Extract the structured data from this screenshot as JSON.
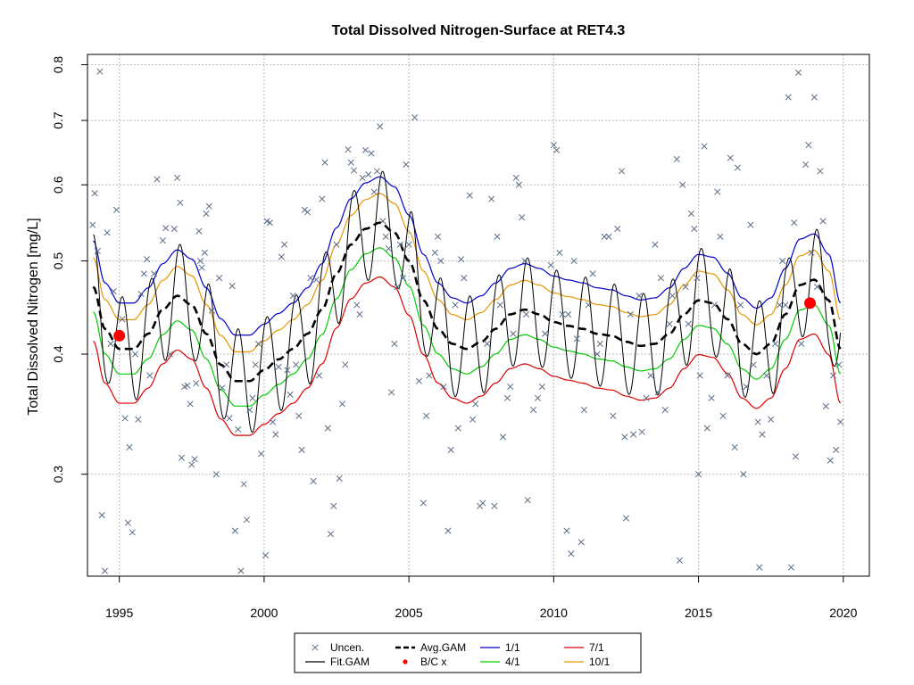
{
  "chart_data": {
    "type": "scatter",
    "title": "Total Dissolved Nitrogen-Surface at RET4.3",
    "xlabel": "",
    "ylabel": "Total Dissolved Nitrogen [mg/L]",
    "xlim": [
      1993.9,
      2020.9
    ],
    "ylim": [
      0.235,
      0.82
    ],
    "y_scale": "log",
    "grid": true,
    "legend_position": "bottom",
    "x_ticks": [
      1995,
      2000,
      2005,
      2010,
      2015,
      2020
    ],
    "y_ticks": [
      0.3,
      0.4,
      0.5,
      0.6,
      0.7,
      0.8
    ],
    "legend": [
      {
        "label": "Uncen.",
        "symbol": "x",
        "color": "#5a6e87"
      },
      {
        "label": "Avg.GAM",
        "symbol": "dashed-line",
        "color": "#000000"
      },
      {
        "label": "1/1",
        "symbol": "line",
        "color": "#0000cc"
      },
      {
        "label": "7/1",
        "symbol": "line",
        "color": "#dd0000"
      },
      {
        "label": "Fit.GAM",
        "symbol": "line",
        "color": "#000000"
      },
      {
        "label": "B/C x",
        "symbol": "point",
        "color": "#ff0000"
      },
      {
        "label": "4/1",
        "symbol": "line",
        "color": "#00cc00"
      },
      {
        "label": "10/1",
        "symbol": "line",
        "color": "#e69500"
      }
    ],
    "bc_points": [
      [
        1995.0,
        0.418
      ],
      [
        2018.85,
        0.452
      ]
    ],
    "avg_gam": {
      "x": [
        1994.1,
        1994.5,
        1995.0,
        1995.5,
        1996.0,
        1996.5,
        1997.0,
        1997.5,
        1998.0,
        1998.5,
        1999.0,
        1999.5,
        2000.0,
        2000.5,
        2001.0,
        2001.5,
        2002.0,
        2002.5,
        2003.0,
        2003.5,
        2004.0,
        2004.5,
        2005.0,
        2005.5,
        2006.0,
        2006.5,
        2007.0,
        2007.5,
        2008.0,
        2008.5,
        2009.0,
        2009.5,
        2010.0,
        2010.5,
        2011.0,
        2011.5,
        2012.0,
        2012.5,
        2013.0,
        2013.5,
        2014.0,
        2014.5,
        2015.0,
        2015.5,
        2016.0,
        2016.5,
        2017.0,
        2017.5,
        2018.0,
        2018.5,
        2019.0,
        2019.5,
        2019.9
      ],
      "y": [
        0.47,
        0.425,
        0.405,
        0.405,
        0.42,
        0.445,
        0.46,
        0.45,
        0.42,
        0.39,
        0.375,
        0.375,
        0.385,
        0.395,
        0.405,
        0.42,
        0.445,
        0.485,
        0.52,
        0.54,
        0.548,
        0.535,
        0.5,
        0.455,
        0.425,
        0.41,
        0.405,
        0.412,
        0.425,
        0.44,
        0.445,
        0.44,
        0.432,
        0.428,
        0.425,
        0.42,
        0.418,
        0.412,
        0.408,
        0.41,
        0.42,
        0.44,
        0.455,
        0.452,
        0.435,
        0.41,
        0.4,
        0.41,
        0.44,
        0.472,
        0.478,
        0.455,
        0.405
      ]
    },
    "seasonal_series": [
      {
        "name": "1/1",
        "color": "#0000cc",
        "offset": 0.11
      },
      {
        "name": "10/1",
        "color": "#e69500",
        "offset": 0.07
      },
      {
        "name": "4/1",
        "color": "#00cc00",
        "offset": -0.06
      },
      {
        "name": "7/1",
        "color": "#dd0000",
        "offset": -0.13
      }
    ],
    "fit_gam": {
      "color": "#000000",
      "amplitude": 0.125,
      "period_years": 1
    },
    "uncensored_points": [
      [
        1994.08,
        0.545
      ],
      [
        1994.15,
        0.588
      ],
      [
        1994.25,
        0.512
      ],
      [
        1994.33,
        0.787
      ],
      [
        1994.4,
        0.272
      ],
      [
        1994.5,
        0.238
      ],
      [
        1994.58,
        0.535
      ],
      [
        1994.7,
        0.41
      ],
      [
        1994.8,
        0.465
      ],
      [
        1994.9,
        0.565
      ],
      [
        1995.1,
        0.435
      ],
      [
        1995.2,
        0.343
      ],
      [
        1995.3,
        0.267
      ],
      [
        1995.35,
        0.32
      ],
      [
        1995.45,
        0.261
      ],
      [
        1995.55,
        0.4
      ],
      [
        1995.65,
        0.342
      ],
      [
        1995.75,
        0.462
      ],
      [
        1995.85,
        0.485
      ],
      [
        1995.95,
        0.502
      ],
      [
        1996.05,
        0.38
      ],
      [
        1996.2,
        0.485
      ],
      [
        1996.3,
        0.608
      ],
      [
        1996.5,
        0.525
      ],
      [
        1996.6,
        0.541
      ],
      [
        1996.75,
        0.4
      ],
      [
        1996.9,
        0.54
      ],
      [
        1997.0,
        0.61
      ],
      [
        1997.1,
        0.575
      ],
      [
        1997.15,
        0.312
      ],
      [
        1997.25,
        0.37
      ],
      [
        1997.35,
        0.371
      ],
      [
        1997.45,
        0.355
      ],
      [
        1997.5,
        0.307
      ],
      [
        1997.6,
        0.311
      ],
      [
        1997.65,
        0.373
      ],
      [
        1997.75,
        0.537
      ],
      [
        1997.8,
        0.5
      ],
      [
        1997.85,
        0.492
      ],
      [
        1997.95,
        0.51
      ],
      [
        1998.0,
        0.56
      ],
      [
        1998.1,
        0.57
      ],
      [
        1998.2,
        0.444
      ],
      [
        1998.35,
        0.3
      ],
      [
        1998.45,
        0.48
      ],
      [
        1998.55,
        0.369
      ],
      [
        1998.7,
        0.39
      ],
      [
        1998.8,
        0.343
      ],
      [
        1998.9,
        0.471
      ],
      [
        1999.0,
        0.262
      ],
      [
        1999.1,
        0.334
      ],
      [
        1999.2,
        0.238
      ],
      [
        1999.3,
        0.293
      ],
      [
        1999.4,
        0.269
      ],
      [
        1999.5,
        0.35
      ],
      [
        1999.6,
        0.36
      ],
      [
        1999.7,
        0.39
      ],
      [
        1999.8,
        0.41
      ],
      [
        1999.9,
        0.315
      ],
      [
        2000.05,
        0.247
      ],
      [
        2000.1,
        0.55
      ],
      [
        2000.2,
        0.548
      ],
      [
        2000.3,
        0.34
      ],
      [
        2000.4,
        0.33
      ],
      [
        2000.5,
        0.388
      ],
      [
        2000.6,
        0.505
      ],
      [
        2000.7,
        0.52
      ],
      [
        2000.8,
        0.385
      ],
      [
        2000.9,
        0.363
      ],
      [
        2001.0,
        0.46
      ],
      [
        2001.1,
        0.39
      ],
      [
        2001.2,
        0.345
      ],
      [
        2001.3,
        0.318
      ],
      [
        2001.4,
        0.565
      ],
      [
        2001.5,
        0.562
      ],
      [
        2001.6,
        0.48
      ],
      [
        2001.7,
        0.295
      ],
      [
        2001.8,
        0.478
      ],
      [
        2001.9,
        0.38
      ],
      [
        2002.0,
        0.58
      ],
      [
        2002.1,
        0.633
      ],
      [
        2002.2,
        0.335
      ],
      [
        2002.3,
        0.26
      ],
      [
        2002.4,
        0.278
      ],
      [
        2002.5,
        0.52
      ],
      [
        2002.6,
        0.297
      ],
      [
        2002.7,
        0.355
      ],
      [
        2002.8,
        0.39
      ],
      [
        2002.9,
        0.653
      ],
      [
        2003.0,
        0.633
      ],
      [
        2003.1,
        0.621
      ],
      [
        2003.2,
        0.45
      ],
      [
        2003.3,
        0.44
      ],
      [
        2003.4,
        0.61
      ],
      [
        2003.5,
        0.652
      ],
      [
        2003.6,
        0.615
      ],
      [
        2003.7,
        0.647
      ],
      [
        2003.8,
        0.59
      ],
      [
        2003.9,
        0.62
      ],
      [
        2004.0,
        0.69
      ],
      [
        2004.1,
        0.55
      ],
      [
        2004.2,
        0.53
      ],
      [
        2004.3,
        0.515
      ],
      [
        2004.4,
        0.365
      ],
      [
        2004.5,
        0.41
      ],
      [
        2004.6,
        0.47
      ],
      [
        2004.7,
        0.52
      ],
      [
        2004.8,
        0.48
      ],
      [
        2004.9,
        0.63
      ],
      [
        2005.0,
        0.52
      ],
      [
        2005.2,
        0.705
      ],
      [
        2005.35,
        0.375
      ],
      [
        2005.5,
        0.28
      ],
      [
        2005.6,
        0.345
      ],
      [
        2005.7,
        0.38
      ],
      [
        2005.9,
        0.51
      ],
      [
        2006.0,
        0.53
      ],
      [
        2006.1,
        0.5
      ],
      [
        2006.2,
        0.37
      ],
      [
        2006.35,
        0.262
      ],
      [
        2006.45,
        0.318
      ],
      [
        2006.6,
        0.45
      ],
      [
        2006.7,
        0.335
      ],
      [
        2006.8,
        0.502
      ],
      [
        2006.9,
        0.48
      ],
      [
        2007.1,
        0.585
      ],
      [
        2007.2,
        0.342
      ],
      [
        2007.3,
        0.355
      ],
      [
        2007.45,
        0.278
      ],
      [
        2007.55,
        0.28
      ],
      [
        2007.7,
        0.41
      ],
      [
        2007.85,
        0.58
      ],
      [
        2007.95,
        0.278
      ],
      [
        2008.05,
        0.53
      ],
      [
        2008.15,
        0.45
      ],
      [
        2008.25,
        0.328
      ],
      [
        2008.4,
        0.36
      ],
      [
        2008.5,
        0.37
      ],
      [
        2008.6,
        0.42
      ],
      [
        2008.7,
        0.61
      ],
      [
        2008.8,
        0.6
      ],
      [
        2008.9,
        0.555
      ],
      [
        2009.0,
        0.5
      ],
      [
        2009.05,
        0.44
      ],
      [
        2009.1,
        0.282
      ],
      [
        2009.3,
        0.35
      ],
      [
        2009.45,
        0.36
      ],
      [
        2009.6,
        0.37
      ],
      [
        2009.7,
        0.42
      ],
      [
        2009.9,
        0.495
      ],
      [
        2010.0,
        0.66
      ],
      [
        2010.1,
        0.652
      ],
      [
        2010.2,
        0.51
      ],
      [
        2010.3,
        0.44
      ],
      [
        2010.45,
        0.262
      ],
      [
        2010.5,
        0.44
      ],
      [
        2010.6,
        0.248
      ],
      [
        2010.7,
        0.5
      ],
      [
        2010.8,
        0.415
      ],
      [
        2010.95,
        0.255
      ],
      [
        2011.05,
        0.35
      ],
      [
        2011.2,
        0.45
      ],
      [
        2011.35,
        0.485
      ],
      [
        2011.5,
        0.4
      ],
      [
        2011.6,
        0.41
      ],
      [
        2011.75,
        0.53
      ],
      [
        2011.9,
        0.53
      ],
      [
        2012.05,
        0.345
      ],
      [
        2012.2,
        0.54
      ],
      [
        2012.35,
        0.62
      ],
      [
        2012.45,
        0.328
      ],
      [
        2012.5,
        0.27
      ],
      [
        2012.65,
        0.44
      ],
      [
        2012.75,
        0.33
      ],
      [
        2012.95,
        0.46
      ],
      [
        2013.05,
        0.332
      ],
      [
        2013.2,
        0.36
      ],
      [
        2013.35,
        0.38
      ],
      [
        2013.5,
        0.52
      ],
      [
        2013.6,
        0.365
      ],
      [
        2013.7,
        0.48
      ],
      [
        2013.85,
        0.35
      ],
      [
        2014.0,
        0.43
      ],
      [
        2014.1,
        0.46
      ],
      [
        2014.25,
        0.638
      ],
      [
        2014.35,
        0.244
      ],
      [
        2014.45,
        0.6
      ],
      [
        2014.55,
        0.47
      ],
      [
        2014.65,
        0.43
      ],
      [
        2014.75,
        0.56
      ],
      [
        2014.85,
        0.54
      ],
      [
        2014.95,
        0.48
      ],
      [
        2015.0,
        0.3
      ],
      [
        2015.05,
        0.38
      ],
      [
        2015.2,
        0.658
      ],
      [
        2015.3,
        0.335
      ],
      [
        2015.45,
        0.36
      ],
      [
        2015.55,
        0.45
      ],
      [
        2015.65,
        0.59
      ],
      [
        2015.75,
        0.53
      ],
      [
        2015.85,
        0.345
      ],
      [
        2016.0,
        0.38
      ],
      [
        2016.1,
        0.64
      ],
      [
        2016.25,
        0.32
      ],
      [
        2016.35,
        0.625
      ],
      [
        2016.45,
        0.45
      ],
      [
        2016.55,
        0.3
      ],
      [
        2016.65,
        0.37
      ],
      [
        2016.8,
        0.545
      ],
      [
        2016.9,
        0.39
      ],
      [
        2017.05,
        0.34
      ],
      [
        2017.1,
        0.24
      ],
      [
        2017.2,
        0.33
      ],
      [
        2017.35,
        0.38
      ],
      [
        2017.5,
        0.342
      ],
      [
        2017.65,
        0.41
      ],
      [
        2017.8,
        0.45
      ],
      [
        2017.9,
        0.5
      ],
      [
        2018.0,
        0.45
      ],
      [
        2018.1,
        0.74
      ],
      [
        2018.2,
        0.24
      ],
      [
        2018.3,
        0.548
      ],
      [
        2018.35,
        0.313
      ],
      [
        2018.45,
        0.785
      ],
      [
        2018.55,
        0.41
      ],
      [
        2018.7,
        0.63
      ],
      [
        2018.8,
        0.66
      ],
      [
        2018.9,
        0.51
      ],
      [
        2019.0,
        0.74
      ],
      [
        2019.1,
        0.47
      ],
      [
        2019.2,
        0.62
      ],
      [
        2019.3,
        0.55
      ],
      [
        2019.4,
        0.353
      ],
      [
        2019.55,
        0.31
      ],
      [
        2019.65,
        0.38
      ],
      [
        2019.75,
        0.318
      ],
      [
        2019.85,
        0.39
      ],
      [
        2019.9,
        0.34
      ]
    ]
  }
}
